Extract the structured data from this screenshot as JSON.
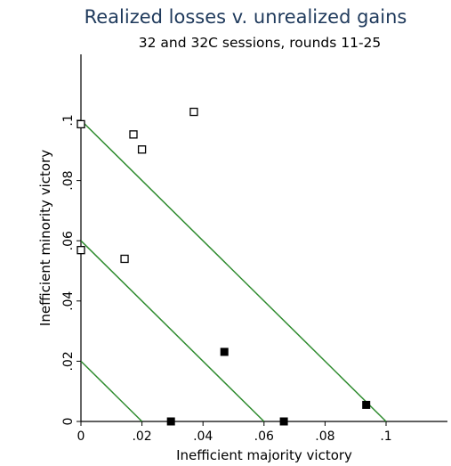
{
  "chart_data": {
    "type": "scatter",
    "title": "Realized losses v. unrealized gains",
    "subtitle": "32 and 32C sessions, rounds 11-25",
    "xlabel": "Inefficient majority victory",
    "ylabel": "Inefficient minority victory",
    "xlim": [
      0,
      0.12
    ],
    "ylim": [
      0,
      0.12
    ],
    "x_ticks": [
      0,
      0.02,
      0.04,
      0.06,
      0.08,
      0.1
    ],
    "x_tick_labels": [
      "0",
      ".02",
      ".04",
      ".06",
      ".08",
      ".1"
    ],
    "y_ticks": [
      0,
      0.02,
      0.04,
      0.06,
      0.08,
      0.1
    ],
    "y_tick_labels": [
      "0",
      ".02",
      ".04",
      ".06",
      ".08",
      ".1"
    ],
    "grid": false,
    "legend": "none",
    "series": [
      {
        "marker": "hollow-square",
        "color": "#000000",
        "points": [
          {
            "x": 0.0,
            "y": 0.0987
          },
          {
            "x": 0.0172,
            "y": 0.0953
          },
          {
            "x": 0.02,
            "y": 0.0903
          },
          {
            "x": 0.037,
            "y": 0.1028
          },
          {
            "x": 0.0,
            "y": 0.0569
          },
          {
            "x": 0.0143,
            "y": 0.054
          }
        ]
      },
      {
        "marker": "filled-square",
        "color": "#000000",
        "points": [
          {
            "x": 0.047,
            "y": 0.0231
          },
          {
            "x": 0.0295,
            "y": 0.0
          },
          {
            "x": 0.0665,
            "y": 0.0
          },
          {
            "x": 0.0935,
            "y": 0.0055
          }
        ]
      }
    ],
    "reference_lines": [
      {
        "x1": 0,
        "y1": 0.1,
        "x2": 0.1,
        "y2": 0
      },
      {
        "x1": 0,
        "y1": 0.06,
        "x2": 0.06,
        "y2": 0
      },
      {
        "x1": 0,
        "y1": 0.02,
        "x2": 0.02,
        "y2": 0
      }
    ],
    "colors": {
      "reference_line": "#2e8b2e",
      "title": "#1f3a5c",
      "axis": "#000000"
    }
  }
}
